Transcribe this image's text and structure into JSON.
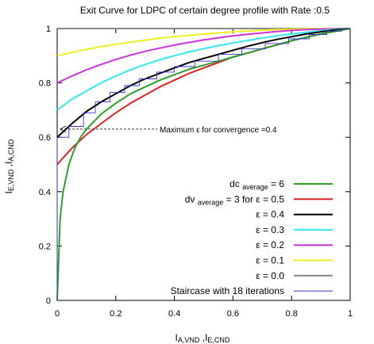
{
  "chart_data": {
    "type": "line",
    "title": "Exit Curve for LDPC of certain degree profile with Rate :0.5",
    "xlabel": {
      "main": "I",
      "sub": "A,VND",
      "sep": " ,I",
      "sub2": "E,CND"
    },
    "ylabel": {
      "main": "I",
      "sub": "E,VND",
      "sep": " ,I",
      "sub2": "A,CND"
    },
    "xlim": [
      0,
      1
    ],
    "ylim": [
      0,
      1
    ],
    "xticks": [
      "0",
      "0.2",
      "0.4",
      "0.6",
      "0.8",
      "1"
    ],
    "yticks": [
      "0",
      "0.2",
      "0.4",
      "0.6",
      "0.8",
      "1"
    ],
    "grid": false,
    "legend_position": "bottom-right",
    "annotation": {
      "text": "Maximum  ε  for convergence =0.4",
      "target": [
        0.0,
        0.63
      ]
    },
    "legend": [
      {
        "pre": "dc ",
        "sub": "average",
        "post": " = 6",
        "color": "#2ca02c"
      },
      {
        "pre": "dv ",
        "sub": "average",
        "post": " = 3 for  ε  = 0.5",
        "color": "#dd2222"
      },
      {
        "pre": "ε  = 0.4",
        "sub": "",
        "post": "",
        "color": "#000000"
      },
      {
        "pre": "ε  = 0.3",
        "sub": "",
        "post": "",
        "color": "#33e6f0"
      },
      {
        "pre": "ε  = 0.2",
        "sub": "",
        "post": "",
        "color": "#cc33dd"
      },
      {
        "pre": "ε  = 0.1",
        "sub": "",
        "post": "",
        "color": "#eeee22"
      },
      {
        "pre": "ε  = 0.0",
        "sub": "",
        "post": "",
        "color": "#888888"
      },
      {
        "pre": "Staircase with 18 iterations",
        "sub": "",
        "post": "",
        "color": "#3333cc"
      }
    ],
    "series": [
      {
        "color": "#2ca02c",
        "width": 2,
        "x": [
          0.0,
          0.01,
          0.02,
          0.04,
          0.06,
          0.08,
          0.1,
          0.15,
          0.2,
          0.25,
          0.3,
          0.35,
          0.4,
          0.45,
          0.5,
          0.55,
          0.6,
          0.65,
          0.7,
          0.75,
          0.8,
          0.85,
          0.9,
          0.95,
          1.0
        ],
        "y": [
          0.0,
          0.3,
          0.4,
          0.5,
          0.56,
          0.6,
          0.63,
          0.685,
          0.725,
          0.76,
          0.785,
          0.81,
          0.83,
          0.85,
          0.865,
          0.88,
          0.895,
          0.91,
          0.925,
          0.94,
          0.955,
          0.968,
          0.98,
          0.99,
          1.0
        ]
      },
      {
        "color": "#dd2222",
        "width": 2,
        "x": [
          0.0,
          0.05,
          0.1,
          0.15,
          0.2,
          0.25,
          0.3,
          0.35,
          0.4,
          0.45,
          0.5,
          0.55,
          0.6,
          0.65,
          0.7,
          0.75,
          0.8,
          0.85,
          0.9,
          0.95,
          1.0
        ],
        "y": [
          0.5,
          0.56,
          0.61,
          0.65,
          0.69,
          0.725,
          0.755,
          0.785,
          0.81,
          0.835,
          0.855,
          0.875,
          0.895,
          0.91,
          0.925,
          0.94,
          0.955,
          0.968,
          0.98,
          0.99,
          1.0
        ]
      },
      {
        "color": "#000000",
        "width": 2,
        "x": [
          0.0,
          0.05,
          0.1,
          0.15,
          0.2,
          0.25,
          0.3,
          0.35,
          0.4,
          0.45,
          0.5,
          0.55,
          0.6,
          0.65,
          0.7,
          0.75,
          0.8,
          0.85,
          0.9,
          0.95,
          1.0
        ],
        "y": [
          0.6,
          0.65,
          0.695,
          0.73,
          0.76,
          0.79,
          0.815,
          0.835,
          0.855,
          0.875,
          0.89,
          0.905,
          0.92,
          0.935,
          0.948,
          0.96,
          0.97,
          0.98,
          0.988,
          0.995,
          1.0
        ]
      },
      {
        "color": "#33e6f0",
        "width": 2,
        "x": [
          0.0,
          0.05,
          0.1,
          0.15,
          0.2,
          0.25,
          0.3,
          0.35,
          0.4,
          0.45,
          0.5,
          0.55,
          0.6,
          0.65,
          0.7,
          0.75,
          0.8,
          0.85,
          0.9,
          0.95,
          1.0
        ],
        "y": [
          0.7,
          0.74,
          0.77,
          0.8,
          0.825,
          0.848,
          0.868,
          0.885,
          0.9,
          0.914,
          0.926,
          0.937,
          0.947,
          0.956,
          0.965,
          0.973,
          0.98,
          0.986,
          0.992,
          0.997,
          1.0
        ]
      },
      {
        "color": "#cc33dd",
        "width": 2,
        "x": [
          0.0,
          0.05,
          0.1,
          0.15,
          0.2,
          0.25,
          0.3,
          0.35,
          0.4,
          0.45,
          0.5,
          0.55,
          0.6,
          0.65,
          0.7,
          0.75,
          0.8,
          0.85,
          0.9,
          0.95,
          1.0
        ],
        "y": [
          0.8,
          0.825,
          0.848,
          0.868,
          0.886,
          0.902,
          0.916,
          0.928,
          0.939,
          0.949,
          0.958,
          0.966,
          0.973,
          0.979,
          0.984,
          0.989,
          0.993,
          0.996,
          0.998,
          0.999,
          1.0
        ]
      },
      {
        "color": "#eeee22",
        "width": 2,
        "x": [
          0.0,
          0.05,
          0.1,
          0.15,
          0.2,
          0.25,
          0.3,
          0.35,
          0.4,
          0.45,
          0.5,
          0.55,
          0.6,
          0.65,
          0.7,
          0.75,
          0.8,
          0.85,
          0.9,
          0.95,
          1.0
        ],
        "y": [
          0.9,
          0.912,
          0.923,
          0.933,
          0.942,
          0.95,
          0.957,
          0.964,
          0.97,
          0.975,
          0.98,
          0.984,
          0.988,
          0.991,
          0.994,
          0.996,
          0.998,
          0.999,
          1.0,
          1.0,
          1.0
        ]
      },
      {
        "color": "#888888",
        "width": 2,
        "x": [
          0.0,
          1.0
        ],
        "y": [
          1.0,
          1.0
        ]
      }
    ],
    "staircase": {
      "color": "#3333cc",
      "width": 0.9,
      "x": [
        0.0,
        0.0,
        0.04,
        0.04,
        0.09,
        0.09,
        0.13,
        0.13,
        0.18,
        0.18,
        0.23,
        0.23,
        0.28,
        0.28,
        0.34,
        0.34,
        0.4,
        0.4,
        0.47,
        0.47,
        0.55,
        0.55,
        0.63,
        0.63,
        0.71,
        0.71,
        0.79,
        0.79,
        0.86,
        0.86,
        0.92,
        0.92,
        0.97,
        0.97,
        1.0
      ],
      "y": [
        0.0,
        0.6,
        0.6,
        0.64,
        0.64,
        0.69,
        0.69,
        0.73,
        0.73,
        0.765,
        0.765,
        0.79,
        0.79,
        0.815,
        0.815,
        0.84,
        0.84,
        0.86,
        0.86,
        0.88,
        0.88,
        0.905,
        0.905,
        0.925,
        0.925,
        0.945,
        0.945,
        0.962,
        0.962,
        0.978,
        0.978,
        0.99,
        0.99,
        0.998,
        0.998
      ]
    }
  }
}
